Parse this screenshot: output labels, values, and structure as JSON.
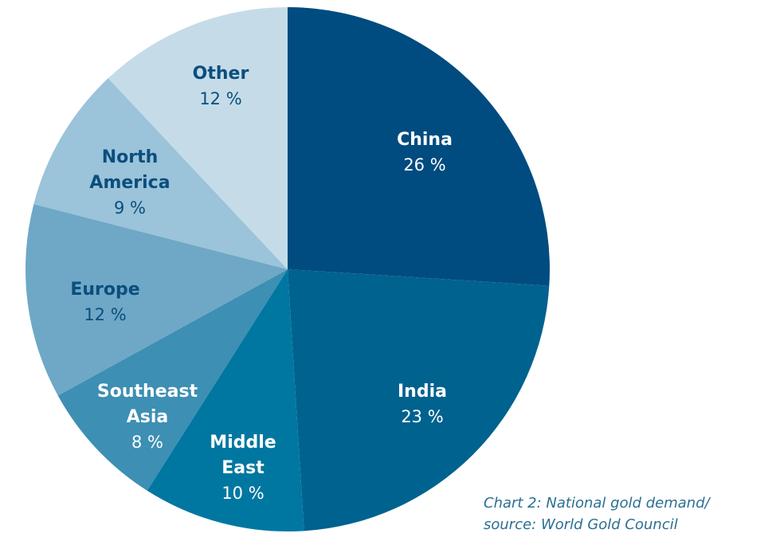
{
  "chart_data": {
    "type": "pie",
    "start_angle_deg": 0,
    "direction": "clockwise",
    "slices": [
      {
        "name_lines": [
          "China"
        ],
        "value_label": "26 %",
        "value": 26,
        "color": "#004b80",
        "label_color": "#ffffff"
      },
      {
        "name_lines": [
          "India"
        ],
        "value_label": "23 %",
        "value": 23,
        "color": "#00628f",
        "label_color": "#ffffff"
      },
      {
        "name_lines": [
          "Middle",
          "East"
        ],
        "value_label": "10 %",
        "value": 10,
        "color": "#0077a1",
        "label_color": "#ffffff"
      },
      {
        "name_lines": [
          "Southeast",
          "Asia"
        ],
        "value_label": "8 %",
        "value": 8,
        "color": "#3d8fb3",
        "label_color": "#ffffff"
      },
      {
        "name_lines": [
          "Europe"
        ],
        "value_label": "12 %",
        "value": 12,
        "color": "#6ea8c6",
        "label_color": "#0b4e7e"
      },
      {
        "name_lines": [
          "North",
          "America"
        ],
        "value_label": "9 %",
        "value": 9,
        "color": "#9bc3d9",
        "label_color": "#0b4e7e"
      },
      {
        "name_lines": [
          "Other"
        ],
        "value_label": "12 %",
        "value": 12,
        "color": "#c5dce8",
        "label_color": "#0b4e7e"
      }
    ]
  },
  "caption": {
    "line1": "Chart 2: National gold demand/",
    "line2": "source: World Gold Council"
  }
}
